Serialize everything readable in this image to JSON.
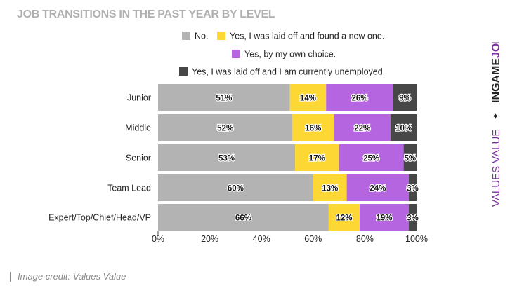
{
  "chart_data": {
    "type": "bar",
    "orientation": "horizontal",
    "stacked": true,
    "title": "JOB TRANSITIONS IN THE PAST YEAR BY LEVEL",
    "categories": [
      "Junior",
      "Middle",
      "Senior",
      "Team Lead",
      "Expert/Top/Chief/Head/VP"
    ],
    "series": [
      {
        "name": "No.",
        "color": "#b3b3b3",
        "values": [
          51,
          52,
          53,
          60,
          66
        ]
      },
      {
        "name": "Yes, I was laid off and found a new one.",
        "color": "#fdd835",
        "values": [
          14,
          16,
          17,
          13,
          12
        ]
      },
      {
        "name": "Yes, by my own choice.",
        "color": "#b565e0",
        "values": [
          26,
          22,
          25,
          24,
          19
        ]
      },
      {
        "name": "Yes, I was laid off and I am currently unemployed.",
        "color": "#474747",
        "values": [
          9,
          10,
          5,
          3,
          3
        ]
      }
    ],
    "value_suffix": "%",
    "xlim": [
      0,
      100
    ],
    "xticks": [
      "0%",
      "20%",
      "40%",
      "60%",
      "80%",
      "100%"
    ],
    "grid": false,
    "legend_position": "top"
  },
  "credit": "Image credit: Values Value",
  "brand": {
    "ingame": "INGAME",
    "job": "JOB",
    "star": "✦",
    "values": "VALUES VALUE",
    "color": "#7b2fa0"
  }
}
